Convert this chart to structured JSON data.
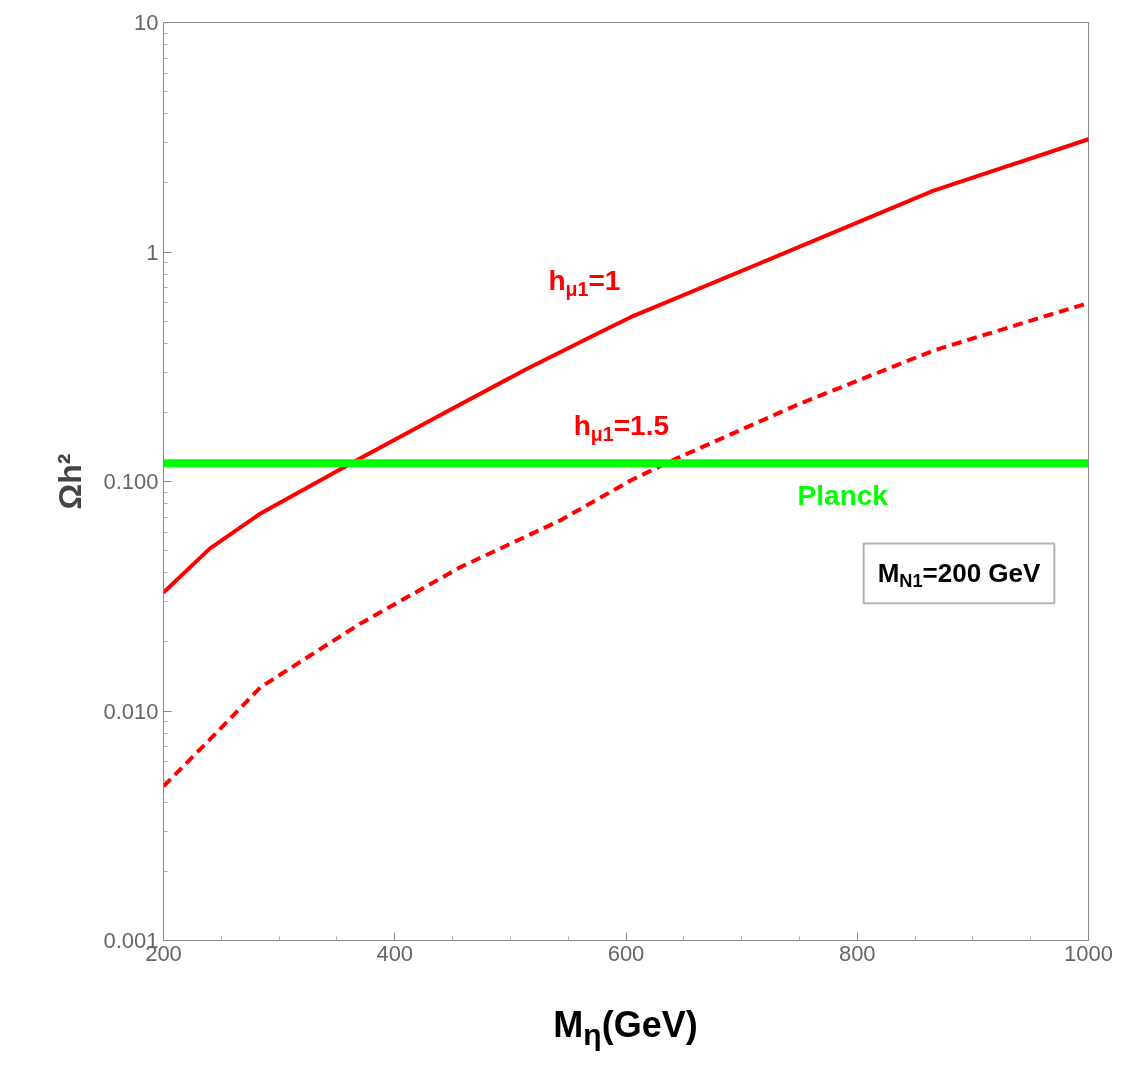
{
  "chart_data": {
    "type": "line",
    "xlabel": "M$_{η}$(GeV)",
    "ylabel": "Ωh²",
    "log": "y",
    "grid": false,
    "marker": "none",
    "xlim": [
      200,
      1000
    ],
    "xticks": [
      200,
      400,
      600,
      800,
      1000
    ],
    "ylim": [
      0.001,
      10
    ],
    "yticks": [
      {
        "value": 0.001,
        "label": "0.001"
      },
      {
        "value": 0.01,
        "label": "0.010"
      },
      {
        "value": 0.1,
        "label": "0.100"
      },
      1,
      10
    ],
    "series": [
      {
        "name": "h$_{μ1}$=1",
        "color": "#ff0000",
        "line_style": "solid",
        "x": [
          200,
          240,
          284,
          367.5,
          442,
          514.5,
          578,
          604,
          722,
          866,
          1000
        ],
        "values": [
          0.0328,
          0.051,
          0.0726,
          0.124,
          0.198,
          0.31,
          0.448,
          0.52,
          0.92,
          1.85,
          3.1
        ]
      },
      {
        "name": "h$_{μ1}$=1.5",
        "color": "#ff0000",
        "line_style": "dashed",
        "x": [
          200,
          240,
          284,
          370,
          457,
          543,
          604,
          636,
          751,
          866,
          1000
        ],
        "values": [
          0.0047,
          0.0075,
          0.0127,
          0.024,
          0.0424,
          0.0676,
          0.101,
          0.121,
          0.219,
          0.372,
          0.6
        ]
      }
    ],
    "ref_lines": [
      {
        "axis": "y",
        "value": 0.12,
        "label": "Planck",
        "color": "#00ff00",
        "line_style": "solid"
      }
    ],
    "annotations": [
      "M$_{N1}$=200 GeV"
    ]
  }
}
